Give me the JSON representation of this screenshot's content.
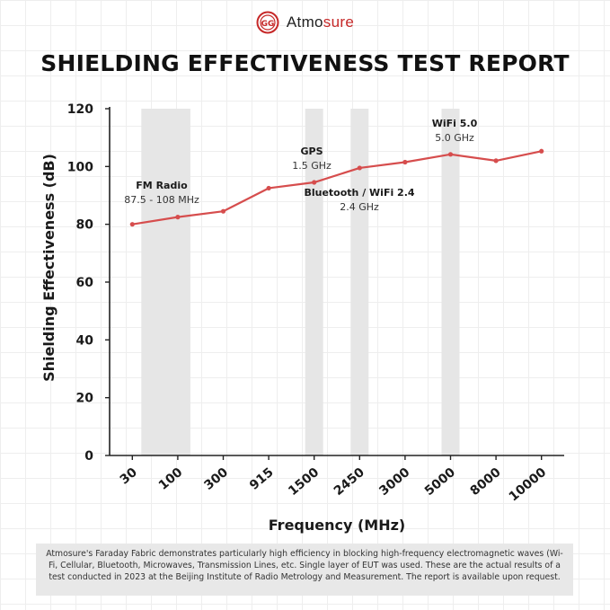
{
  "brand": {
    "name_prefix": "Atmo",
    "name_suffix": "sure",
    "logo_icon": "atmosure-logo-icon"
  },
  "title": "SHIELDING EFFECTIVENESS TEST REPORT",
  "colors": {
    "line": "#d64d4d",
    "band": "#e6e6e6",
    "axis": "#222222",
    "brand_red": "#c62828"
  },
  "chart_data": {
    "type": "line",
    "xlabel": "Frequency (MHz)",
    "ylabel": "Shielding Effectiveness (dB)",
    "ylim": [
      0,
      120
    ],
    "yticks": [
      0,
      20,
      40,
      60,
      80,
      100,
      120
    ],
    "categories": [
      "30",
      "100",
      "300",
      "915",
      "1500",
      "2450",
      "3000",
      "5000",
      "8000",
      "10000"
    ],
    "series": [
      {
        "values": [
          80,
          82.5,
          84.5,
          92.5,
          94.5,
          99.5,
          101.5,
          104.2,
          102,
          105.3
        ]
      }
    ],
    "bands": [
      {
        "from": "30",
        "to": "100",
        "label": "FM Radio",
        "sublabel": "87.5 - 108 MHz"
      },
      {
        "at": "1500",
        "label": "GPS",
        "sublabel": "1.5 GHz"
      },
      {
        "at": "2450",
        "label": "Bluetooth / WiFi 2.4",
        "sublabel": "2.4 GHz"
      },
      {
        "at": "5000",
        "label": "WiFi 5.0",
        "sublabel": "5.0 GHz"
      }
    ],
    "grid": false
  },
  "footer": "Atmosure's Faraday Fabric demonstrates particularly high efficiency in blocking high-frequency electromagnetic waves (Wi-Fi, Cellular, Bluetooth, Microwaves, Transmission Lines, etc. Single layer of EUT was used. These are the actual results of a test conducted in 2023 at the Beijing Institute of Radio Metrology and Measurement. The report is available upon request."
}
